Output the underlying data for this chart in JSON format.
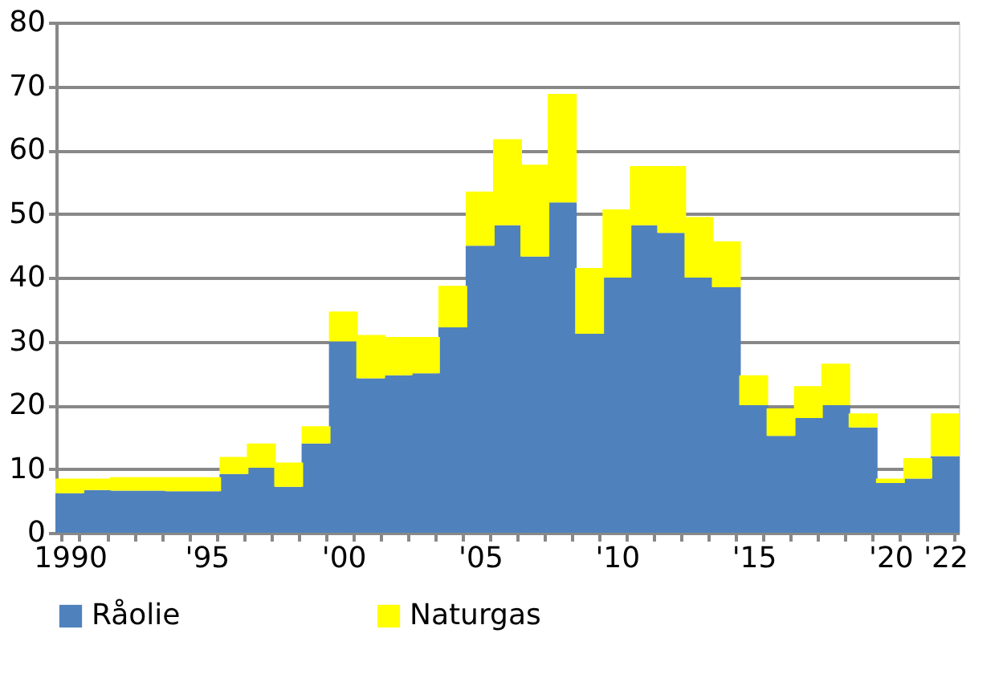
{
  "chart_data": {
    "type": "bar",
    "stacked": true,
    "categories": [
      "1990",
      null,
      null,
      null,
      null,
      "'95",
      null,
      null,
      null,
      null,
      "'00",
      null,
      null,
      null,
      null,
      "'05",
      null,
      null,
      null,
      null,
      "'10",
      null,
      null,
      null,
      null,
      "'15",
      null,
      null,
      null,
      null,
      "'20",
      null,
      "'22"
    ],
    "series": [
      {
        "name": "Råolie",
        "color": "#4f81bd",
        "values": [
          6.2,
          6.7,
          6.6,
          6.6,
          6.5,
          6.5,
          9.2,
          10.2,
          7.2,
          14,
          30,
          24.2,
          24.7,
          25,
          32.2,
          45,
          48.2,
          43.3,
          51.8,
          31.2,
          40,
          48.2,
          47,
          40,
          38.5,
          20,
          15.2,
          18,
          20,
          16.5,
          7.8,
          8.5,
          12
        ]
      },
      {
        "name": "Naturgas",
        "color": "#ffff00",
        "values": [
          2.3,
          1.8,
          2.1,
          2.1,
          2.2,
          2.2,
          2.7,
          3.8,
          3.8,
          2.7,
          4.7,
          6.8,
          6.0,
          5.7,
          6.5,
          8.5,
          13.5,
          14.4,
          17,
          10.3,
          10.7,
          9.3,
          10.5,
          9.5,
          7.2,
          4.7,
          4.3,
          5,
          6.5,
          2.2,
          0.7,
          3.2,
          6.7
        ]
      }
    ],
    "ylim": [
      0,
      80
    ],
    "yticks": [
      0,
      10,
      20,
      30,
      40,
      50,
      60,
      70,
      80
    ],
    "grid": "y",
    "legend": "bottom"
  }
}
